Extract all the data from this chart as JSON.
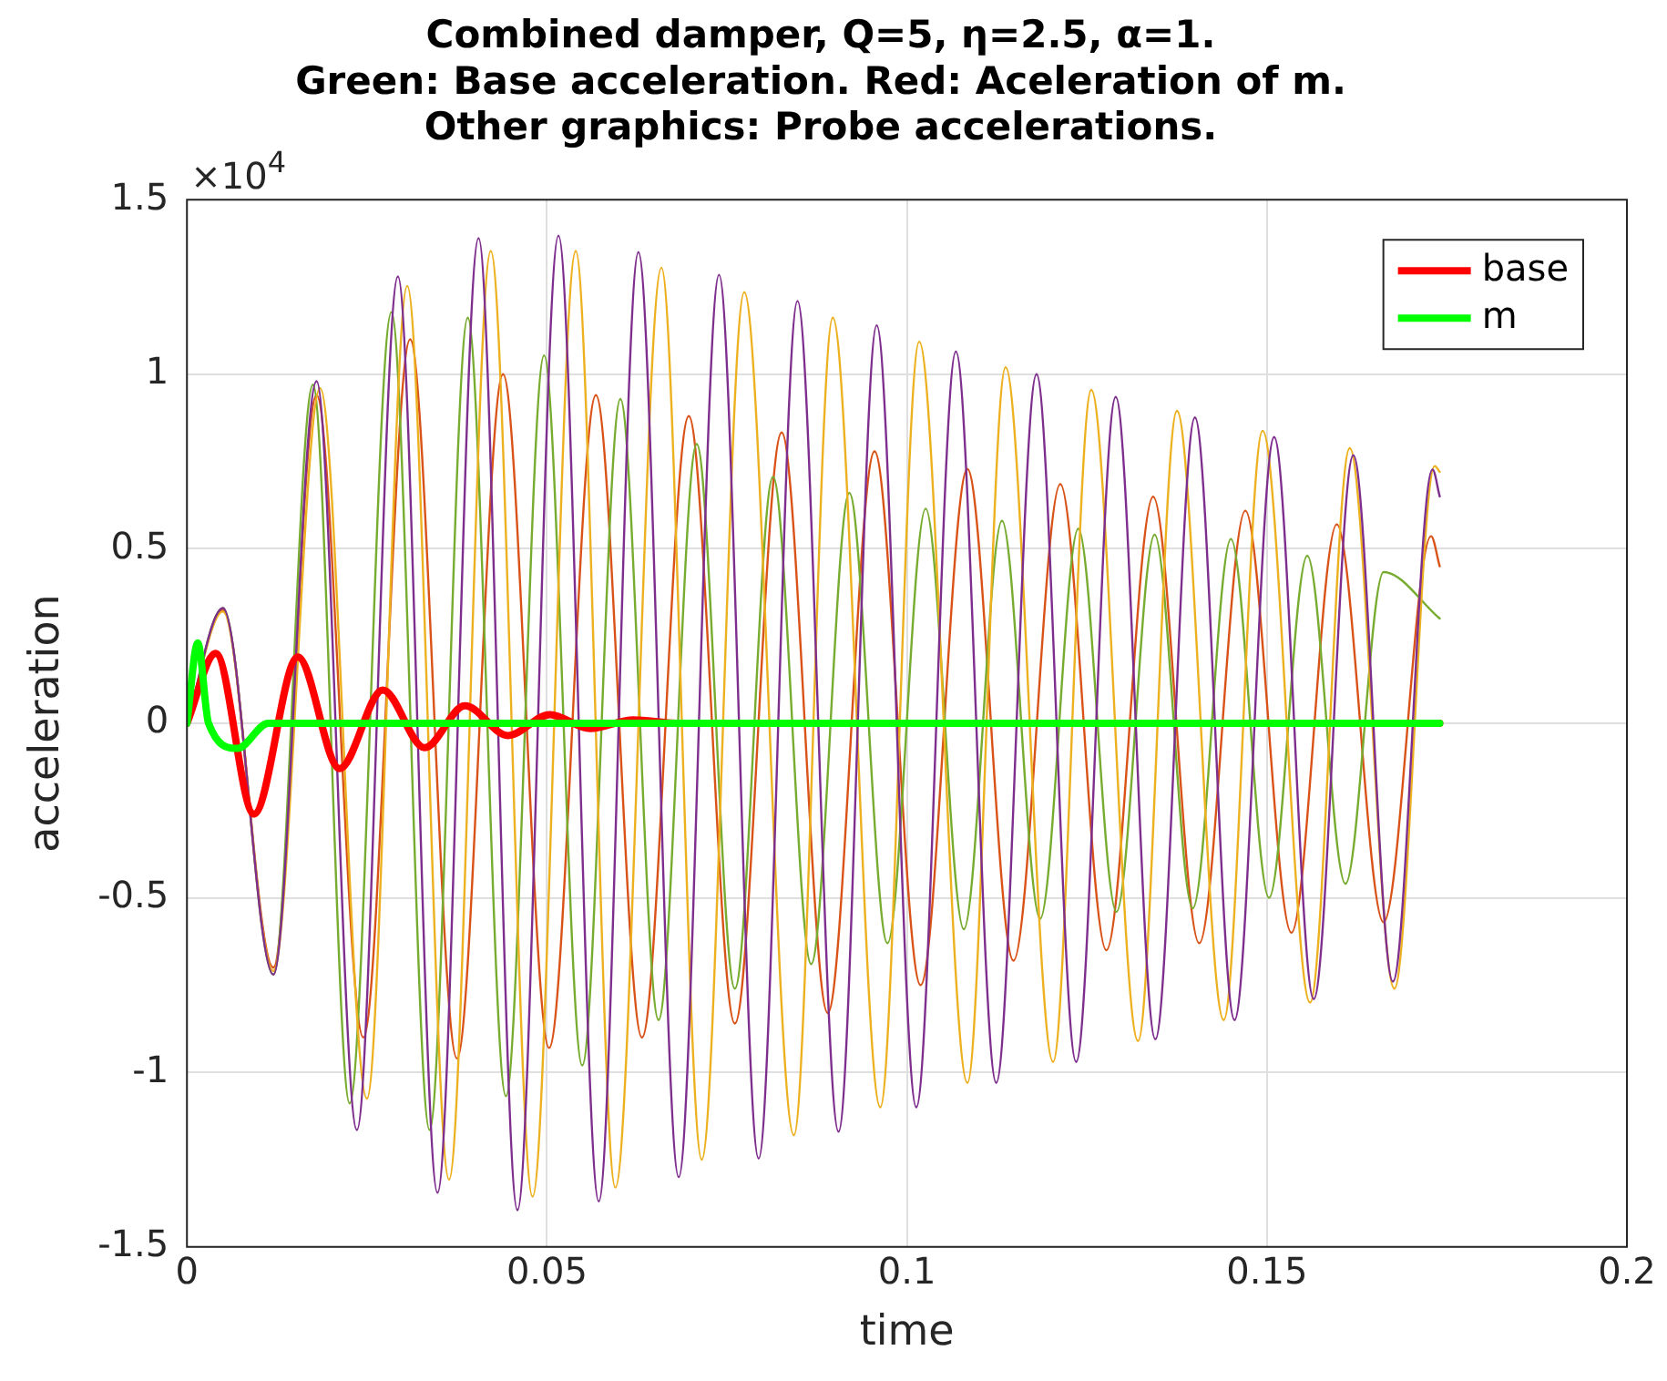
{
  "chart_data": {
    "type": "line",
    "title": "Combined damper, Q=5, η=2.5, α=1.\nGreen: Base acceleration. Red: Aceleration of m.\nOther graphics: Probe accelerations.",
    "xlabel": "time",
    "ylabel": "acceleration",
    "annotations": [
      "×10$^{4}$"
    ],
    "xlim": [
      0,
      0.2
    ],
    "xticks": [
      0,
      0.05,
      0.1,
      0.15,
      0.2
    ],
    "ylim": [
      -1.5,
      1.5
    ],
    "yticks": [
      -1.5,
      -1,
      -0.5,
      0,
      0.5,
      1,
      1.5
    ],
    "grid": true,
    "legend": "top right",
    "marker": "none",
    "line_style": "solid",
    "series": [
      {
        "color": "#7e2f8e",
        "x": [
          0,
          0.005,
          0.012,
          0.018,
          0.0236,
          0.0293,
          0.0348,
          0.0405,
          0.0459,
          0.0516,
          0.0572,
          0.0627,
          0.0683,
          0.0739,
          0.0794,
          0.0848,
          0.0905,
          0.0958,
          0.1013,
          0.1068,
          0.1124,
          0.118,
          0.1235,
          0.129,
          0.1345,
          0.14,
          0.1455,
          0.151,
          0.1565,
          0.162,
          0.1675,
          0.173,
          0.174
        ],
        "values": [
          0,
          0.33,
          -0.72,
          0.98,
          -1.165,
          1.28,
          -1.345,
          1.39,
          -1.395,
          1.397,
          -1.37,
          1.35,
          -1.3,
          1.285,
          -1.247,
          1.21,
          -1.17,
          1.14,
          -1.1,
          1.065,
          -1.03,
          1.0,
          -0.97,
          0.935,
          -0.905,
          0.876,
          -0.85,
          0.82,
          -0.79,
          0.768,
          -0.74,
          0.727,
          0.65
        ]
      },
      {
        "color": "#edb120",
        "x": [
          0,
          0.005,
          0.012,
          0.0185,
          0.025,
          0.0306,
          0.0364,
          0.0422,
          0.048,
          0.054,
          0.0595,
          0.0659,
          0.0715,
          0.0774,
          0.0843,
          0.0897,
          0.0963,
          0.1017,
          0.1084,
          0.1137,
          0.1203,
          0.1256,
          0.1321,
          0.1375,
          0.144,
          0.1494,
          0.156,
          0.1615,
          0.1677,
          0.1733,
          0.174
        ],
        "values": [
          0,
          0.32,
          -0.71,
          0.96,
          -1.075,
          1.253,
          -1.307,
          1.353,
          -1.356,
          1.353,
          -1.33,
          1.305,
          -1.25,
          1.235,
          -1.18,
          1.162,
          -1.1,
          1.093,
          -1.03,
          1.02,
          -0.97,
          0.955,
          -0.91,
          0.895,
          -0.85,
          0.838,
          -0.8,
          0.788,
          -0.76,
          0.737,
          0.72
        ]
      },
      {
        "color": "#77ac30",
        "x": [
          0,
          0.005,
          0.012,
          0.0175,
          0.0226,
          0.0284,
          0.0337,
          0.039,
          0.0443,
          0.0496,
          0.0549,
          0.0602,
          0.0655,
          0.0708,
          0.0761,
          0.0814,
          0.0867,
          0.092,
          0.0973,
          0.1026,
          0.1079,
          0.1132,
          0.1185,
          0.1238,
          0.1291,
          0.1344,
          0.1397,
          0.145,
          0.1503,
          0.1556,
          0.1609,
          0.1662,
          0.174
        ],
        "values": [
          0,
          0.33,
          -0.72,
          0.97,
          -1.089,
          1.178,
          -1.165,
          1.162,
          -1.068,
          1.054,
          -0.98,
          0.929,
          -0.85,
          0.8,
          -0.76,
          0.706,
          -0.69,
          0.66,
          -0.63,
          0.615,
          -0.59,
          0.58,
          -0.56,
          0.557,
          -0.54,
          0.54,
          -0.53,
          0.528,
          -0.5,
          0.48,
          -0.46,
          0.433,
          0.3
        ]
      },
      {
        "color": "#d95319",
        "x": [
          0,
          0.005,
          0.012,
          0.018,
          0.0245,
          0.031,
          0.0375,
          0.0439,
          0.0503,
          0.0568,
          0.0632,
          0.0697,
          0.0761,
          0.0826,
          0.089,
          0.0955,
          0.1019,
          0.1084,
          0.1148,
          0.1213,
          0.1277,
          0.1342,
          0.1406,
          0.147,
          0.1534,
          0.1597,
          0.1662,
          0.1728,
          0.174
        ],
        "values": [
          0,
          0.325,
          -0.7,
          0.94,
          -0.9,
          1.1,
          -0.96,
          1.0,
          -0.93,
          0.94,
          -0.9,
          0.88,
          -0.86,
          0.833,
          -0.83,
          0.779,
          -0.75,
          0.728,
          -0.68,
          0.685,
          -0.65,
          0.649,
          -0.63,
          0.609,
          -0.6,
          0.57,
          -0.57,
          0.536,
          0.45
        ]
      },
      {
        "name": "base",
        "color": "#ff0000",
        "x": [
          0,
          0.004,
          0.0093,
          0.0154,
          0.0212,
          0.0272,
          0.033,
          0.0386,
          0.0446,
          0.0504,
          0.056,
          0.062,
          0.068,
          0.174
        ],
        "values": [
          0,
          0.2,
          -0.26,
          0.19,
          -0.13,
          0.095,
          -0.07,
          0.05,
          -0.035,
          0.025,
          -0.015,
          0.01,
          0,
          0
        ]
      },
      {
        "name": "m",
        "color": "#00ff00",
        "x": [
          0,
          0.0015,
          0.003,
          0.007,
          0.0113,
          0.174
        ],
        "values": [
          0,
          0.23,
          0,
          -0.072,
          0,
          0
        ]
      }
    ]
  }
}
